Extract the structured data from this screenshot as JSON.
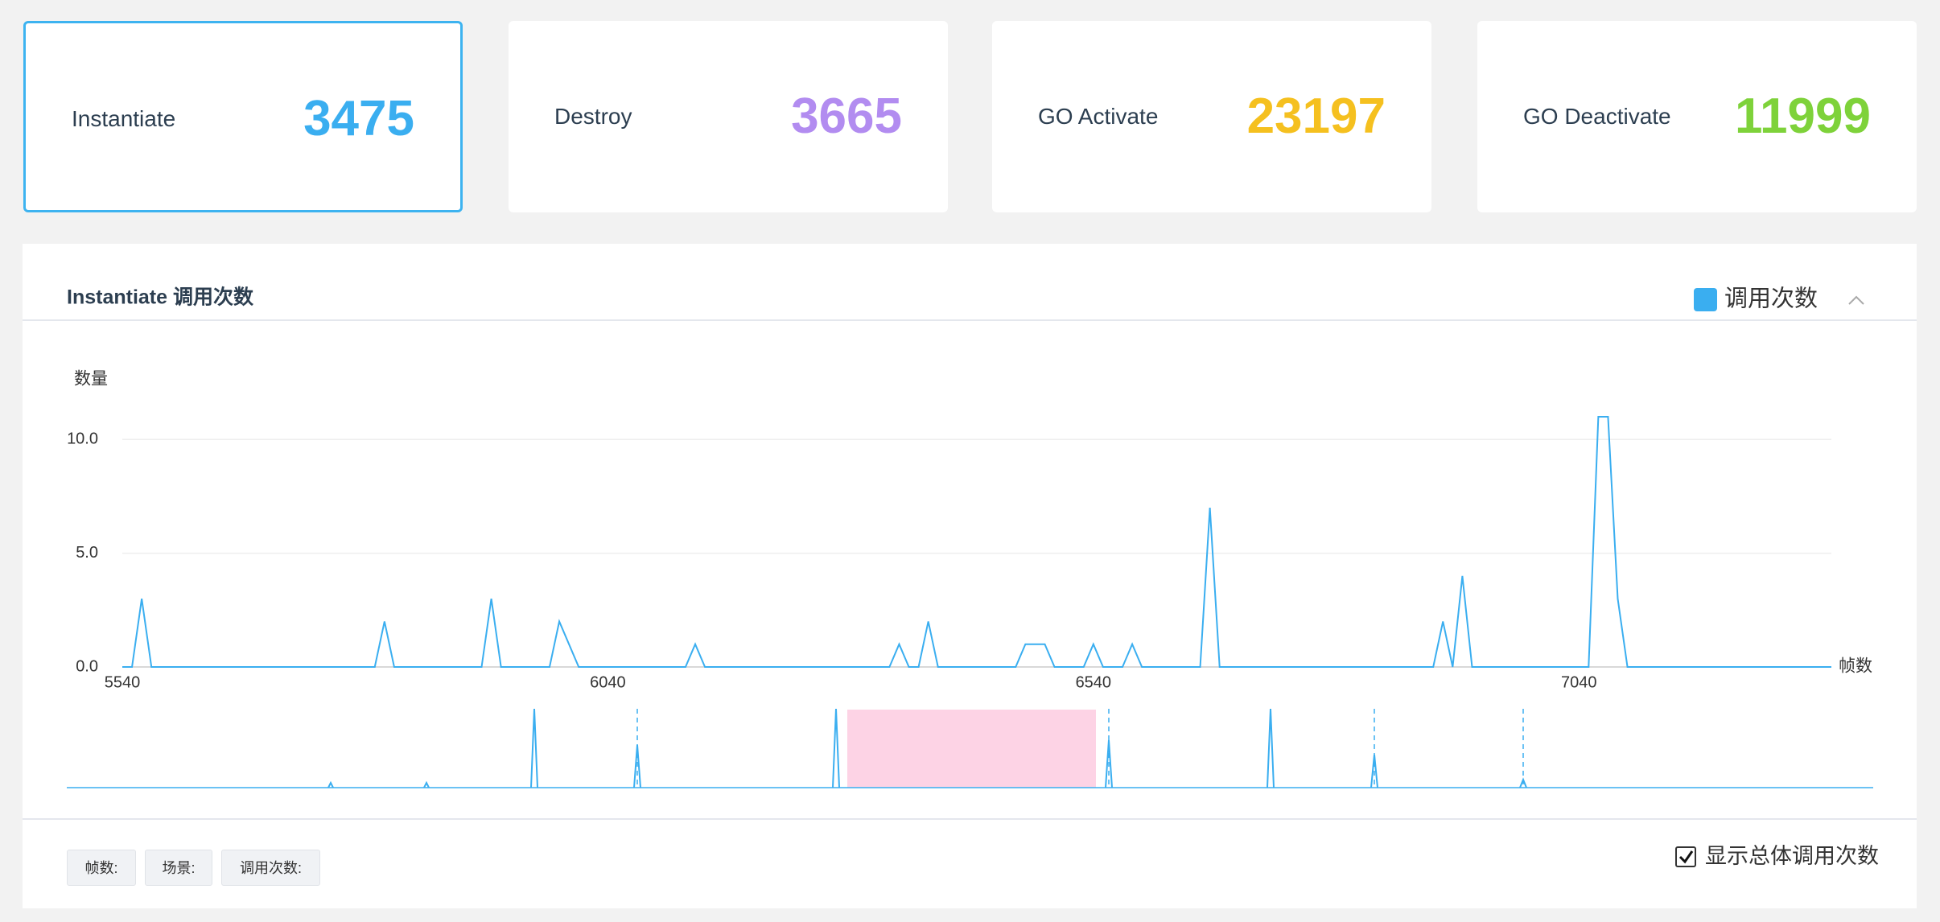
{
  "cards": [
    {
      "label": "Instantiate",
      "value": 3475,
      "color": "#3aaef0"
    },
    {
      "label": "Destroy",
      "value": 3665,
      "color": "#b28cf0"
    },
    {
      "label": "GO Activate",
      "value": 23197,
      "color": "#f5c01f"
    },
    {
      "label": "GO Deactivate",
      "value": 11999,
      "color": "#7ed23a"
    }
  ],
  "chart_data": {
    "type": "line",
    "title": "Instantiate 调用次数",
    "y_axis_name": "数量",
    "x_axis_name": "帧数",
    "series": [
      {
        "name": "调用次数",
        "color": "#3aaef0",
        "x": [
          5540,
          5550,
          5560,
          5570,
          5800,
          5810,
          5820,
          5910,
          5920,
          5930,
          5980,
          5990,
          6010,
          6120,
          6130,
          6140,
          6330,
          6340,
          6350,
          6360,
          6370,
          6380,
          6460,
          6470,
          6490,
          6500,
          6530,
          6540,
          6550,
          6570,
          6580,
          6590,
          6650,
          6660,
          6670,
          6890,
          6900,
          6910,
          6920,
          6930,
          7050,
          7060,
          7070,
          7080,
          7090,
          7300
        ],
        "values": [
          0,
          0,
          3,
          0,
          0,
          2,
          0,
          0,
          3,
          0,
          0,
          2,
          0,
          0,
          1,
          0,
          0,
          1,
          0,
          0,
          2,
          0,
          0,
          1,
          1,
          0,
          0,
          1,
          0,
          0,
          1,
          0,
          0,
          7,
          0,
          0,
          2,
          0,
          4,
          0,
          0,
          11,
          11,
          3,
          0,
          0
        ]
      }
    ],
    "xlim": [
      5540,
      7300
    ],
    "xticks": [
      5540,
      6040,
      6540,
      7040
    ],
    "ylim": [
      0,
      11
    ],
    "yticks": [
      {
        "value": 0,
        "label": "0.0"
      },
      {
        "value": 5,
        "label": "5.0"
      },
      {
        "value": 10,
        "label": "10.0"
      }
    ],
    "grid": true
  },
  "footer": {
    "buttons": [
      "帧数:",
      "场景:",
      "调用次数:"
    ],
    "checkbox_label": "显示总体调用次数"
  }
}
